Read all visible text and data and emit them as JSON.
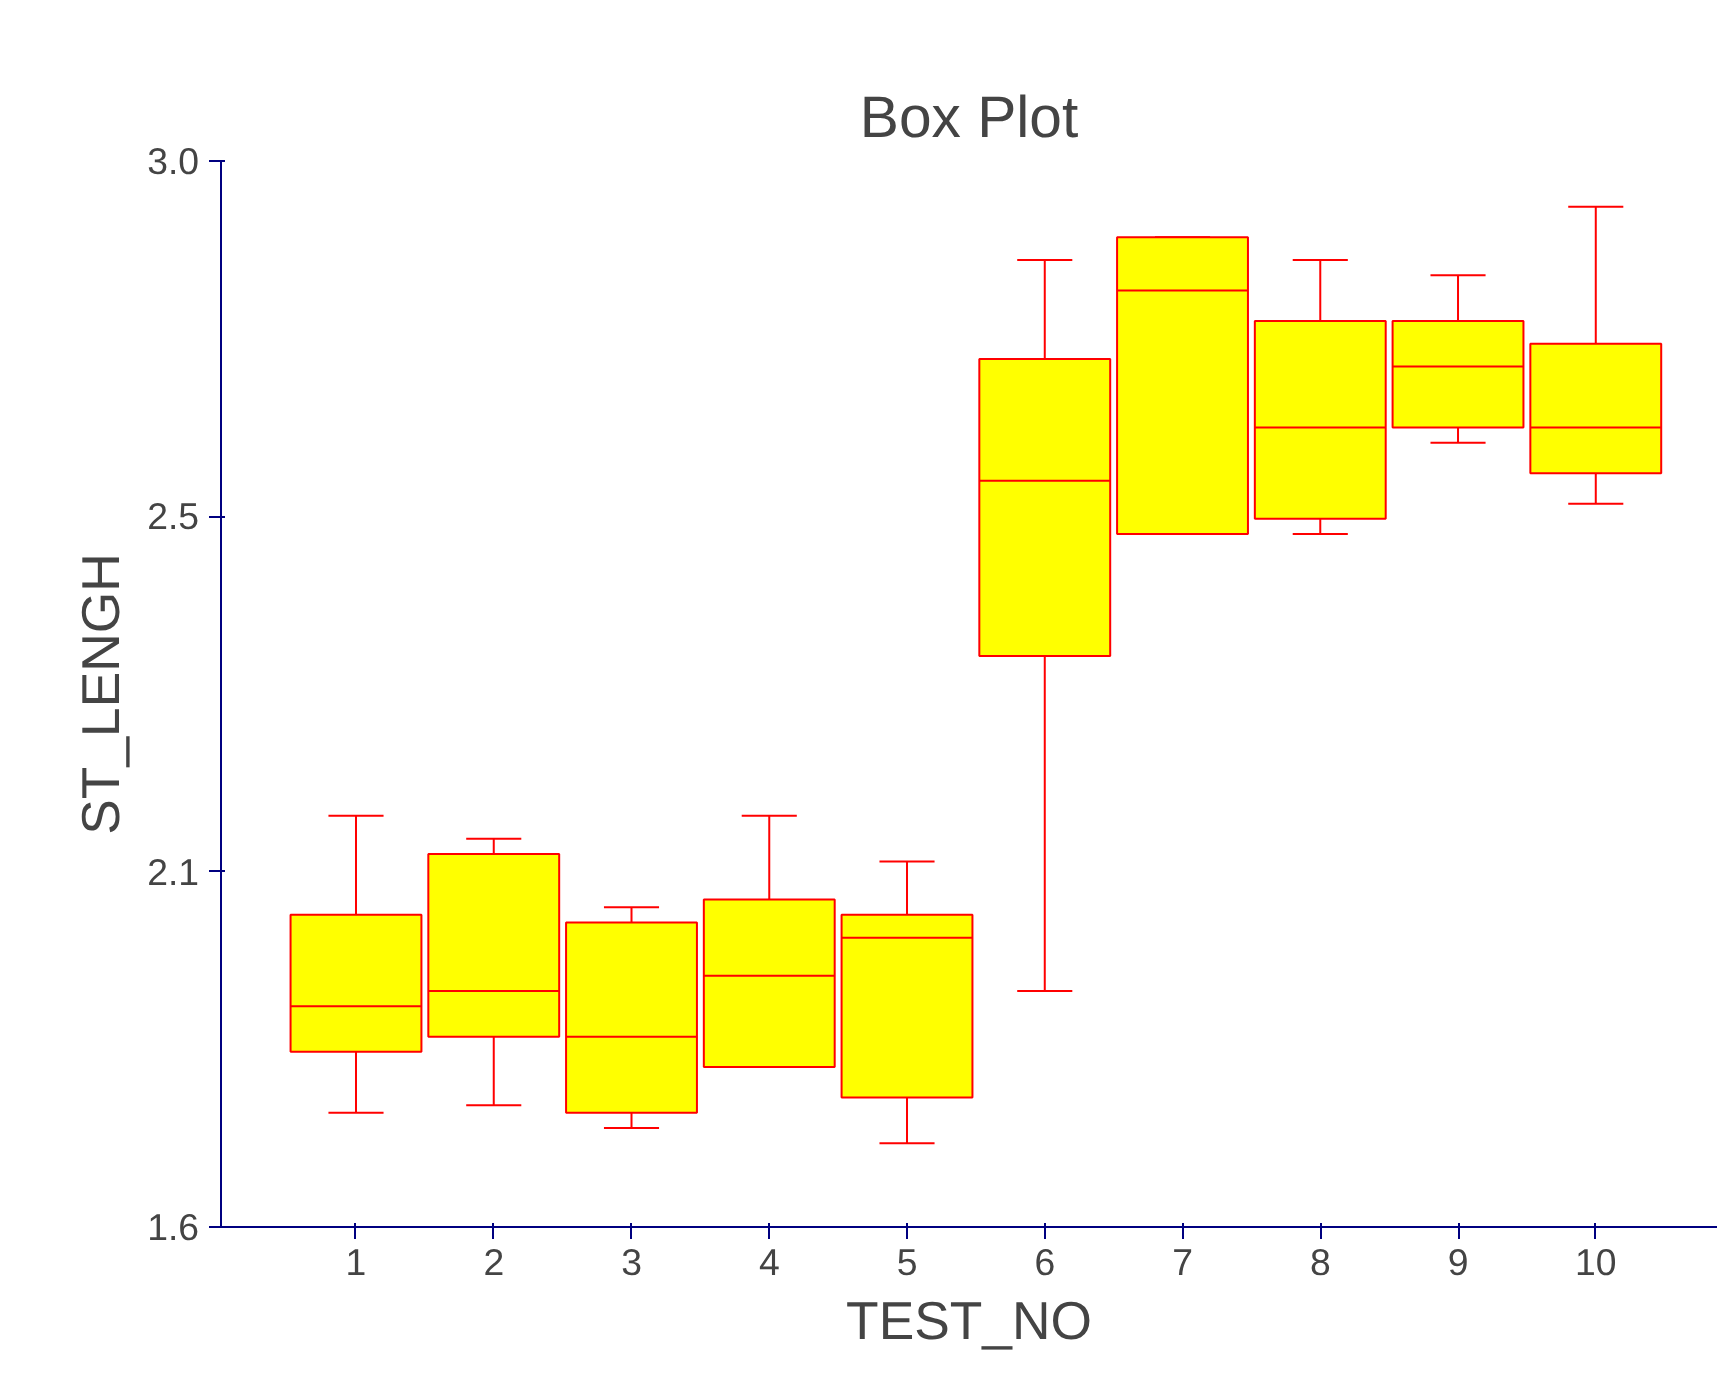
{
  "chart_data": {
    "type": "box",
    "title": "Box Plot",
    "xlabel": "TEST_NO",
    "ylabel": "ST_LENGH",
    "categories": [
      "1",
      "2",
      "3",
      "4",
      "5",
      "6",
      "7",
      "8",
      "9",
      "10"
    ],
    "boxes": [
      {
        "low": 1.75,
        "q1": 1.83,
        "median": 1.89,
        "q3": 2.01,
        "high": 2.14
      },
      {
        "low": 1.76,
        "q1": 1.85,
        "median": 1.91,
        "q3": 2.09,
        "high": 2.11
      },
      {
        "low": 1.73,
        "q1": 1.75,
        "median": 1.85,
        "q3": 2.0,
        "high": 2.02
      },
      {
        "low": 1.81,
        "q1": 1.81,
        "median": 1.93,
        "q3": 2.03,
        "high": 2.14
      },
      {
        "low": 1.71,
        "q1": 1.77,
        "median": 1.98,
        "q3": 2.01,
        "high": 2.08
      },
      {
        "low": 1.91,
        "q1": 2.35,
        "median": 2.58,
        "q3": 2.74,
        "high": 2.87
      },
      {
        "low": 2.51,
        "q1": 2.51,
        "median": 2.83,
        "q3": 2.9,
        "high": 2.9
      },
      {
        "low": 2.51,
        "q1": 2.53,
        "median": 2.65,
        "q3": 2.79,
        "high": 2.87
      },
      {
        "low": 2.63,
        "q1": 2.65,
        "median": 2.73,
        "q3": 2.79,
        "high": 2.85
      },
      {
        "low": 2.55,
        "q1": 2.59,
        "median": 2.65,
        "q3": 2.76,
        "high": 2.94
      }
    ],
    "color": "#ffff00",
    "ylim": [
      1.6,
      3.0
    ],
    "yticks": [
      1.6,
      {
        "value": 2.0667,
        "label": "2.1"
      },
      {
        "value": 2.5333,
        "label": "2.5"
      },
      {
        "value": 3.0,
        "label": "3.0"
      }
    ],
    "grid": false
  }
}
